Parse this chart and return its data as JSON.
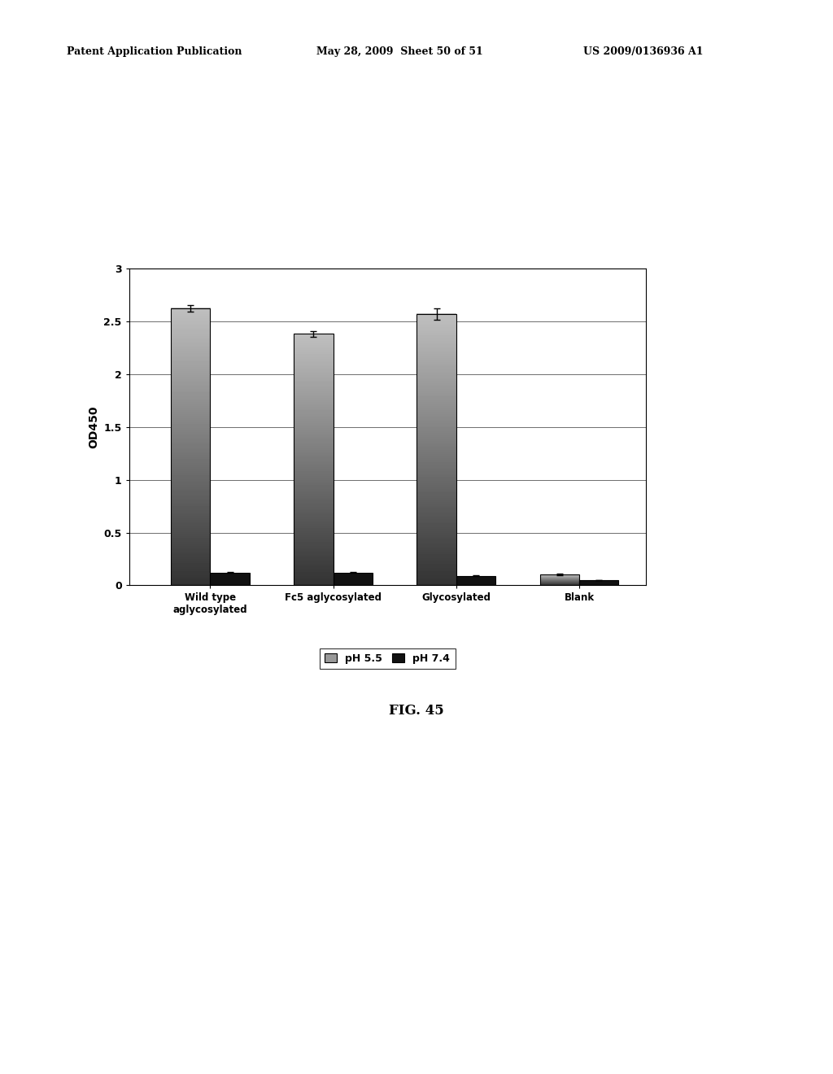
{
  "categories": [
    "Wild type\naglycosylated",
    "Fc5 aglycosylated",
    "Glycosylated",
    "Blank"
  ],
  "ph55_values": [
    2.62,
    2.38,
    2.57,
    0.1
  ],
  "ph74_values": [
    0.12,
    0.12,
    0.09,
    0.05
  ],
  "ph55_errors": [
    0.03,
    0.025,
    0.055,
    0.008
  ],
  "ph74_errors": [
    0.005,
    0.005,
    0.005,
    0.003
  ],
  "ph55_color": "#888888",
  "ph74_color": "#111111",
  "ylabel": "OD450",
  "ylim": [
    0,
    3
  ],
  "yticks": [
    0,
    0.5,
    1,
    1.5,
    2,
    2.5,
    3
  ],
  "legend_labels": [
    "pH 5.5",
    "pH 7.4"
  ],
  "bar_width": 0.32,
  "header_left": "Patent Application Publication",
  "header_mid": "May 28, 2009  Sheet 50 of 51",
  "header_right": "US 2009/0136936 A1",
  "fig_label": "FIG. 45",
  "background_color": "#ffffff"
}
